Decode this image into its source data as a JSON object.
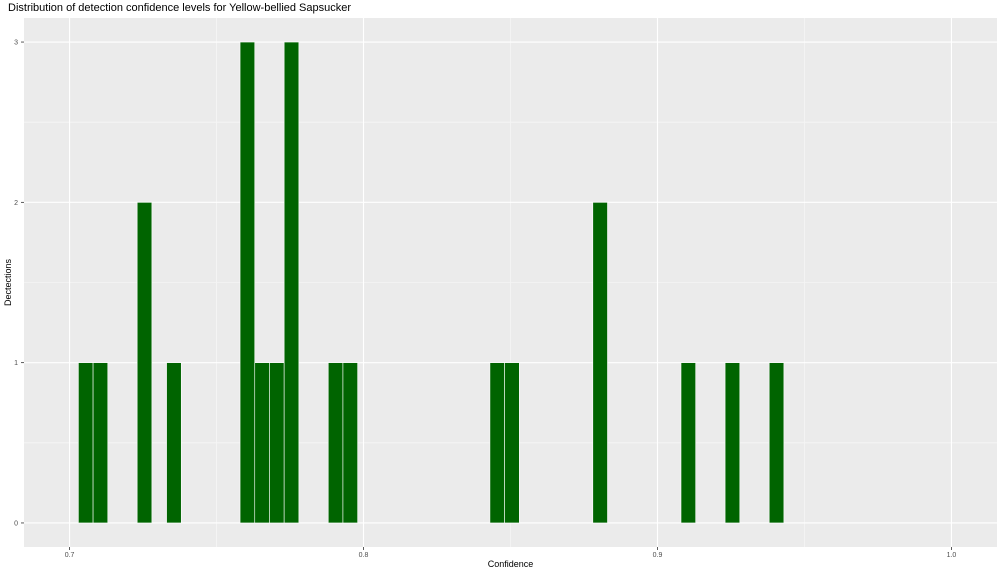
{
  "chart_data": {
    "type": "bar",
    "title": "Distribution of detection confidence levels for Yellow-bellied Sapsucker",
    "xlabel": "Confidence",
    "ylabel": "Dectections",
    "xlim": [
      0.6845,
      1.0155
    ],
    "ylim": [
      -0.15,
      3.15
    ],
    "x_ticks": [
      0.7,
      0.8,
      0.9,
      1.0
    ],
    "x_tick_labels": [
      "0.7",
      "0.8",
      "0.9",
      "1.0"
    ],
    "y_ticks": [
      0,
      1,
      2,
      3
    ],
    "y_tick_labels": [
      "0",
      "1",
      "2",
      "3"
    ],
    "grid": true,
    "colors": {
      "bar_fill": "#006400",
      "bar_outline": "#ffffff",
      "panel_background": "#ebebeb",
      "grid_major": "#ffffff"
    },
    "bars": [
      {
        "x": 0.7055,
        "value": 1
      },
      {
        "x": 0.7105,
        "value": 1
      },
      {
        "x": 0.7255,
        "value": 2
      },
      {
        "x": 0.7355,
        "value": 1
      },
      {
        "x": 0.7605,
        "value": 3
      },
      {
        "x": 0.7655,
        "value": 1
      },
      {
        "x": 0.7705,
        "value": 1
      },
      {
        "x": 0.7755,
        "value": 3
      },
      {
        "x": 0.7905,
        "value": 1
      },
      {
        "x": 0.7955,
        "value": 1
      },
      {
        "x": 0.8455,
        "value": 1
      },
      {
        "x": 0.8505,
        "value": 1
      },
      {
        "x": 0.8805,
        "value": 2
      },
      {
        "x": 0.9105,
        "value": 1
      },
      {
        "x": 0.9255,
        "value": 1
      },
      {
        "x": 0.9405,
        "value": 1
      }
    ],
    "bin_width": 0.005
  }
}
